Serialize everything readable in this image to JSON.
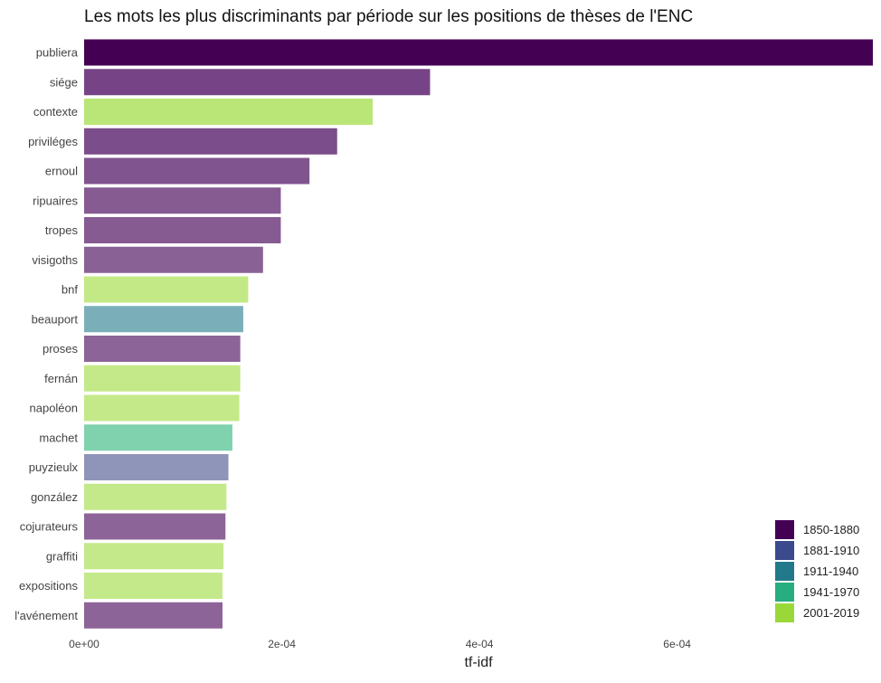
{
  "chart_data": {
    "type": "bar",
    "orientation": "horizontal",
    "title": "Les mots les plus discriminants par période sur les positions de thèses de l'ENC",
    "xlabel": "tf-idf",
    "ylabel": "",
    "xlim": [
      0,
      0.000798
    ],
    "x_ticks": [
      {
        "value": 0,
        "label": "0e+00"
      },
      {
        "value": 0.0002,
        "label": "2e-04"
      },
      {
        "value": 0.0004,
        "label": "4e-04"
      },
      {
        "value": 0.0006,
        "label": "6e-04"
      }
    ],
    "grid": false,
    "legend_position": "bottom-right",
    "legend": [
      {
        "label": "1850-1880",
        "color": "#440154"
      },
      {
        "label": "1881-1910",
        "color": "#3b4a8c"
      },
      {
        "label": "1911-1940",
        "color": "#22798a"
      },
      {
        "label": "1941-1970",
        "color": "#27ad80"
      },
      {
        "label": "2001-2019",
        "color": "#9ad83a"
      }
    ],
    "bars": [
      {
        "word": "publiera",
        "value": 0.000798,
        "color": "#440154"
      },
      {
        "word": "siége",
        "value": 0.00035,
        "color": "#764486"
      },
      {
        "word": "contexte",
        "value": 0.000292,
        "color": "#bae677"
      },
      {
        "word": "priviléges",
        "value": 0.000256,
        "color": "#7b4d8a"
      },
      {
        "word": "ernoul",
        "value": 0.000228,
        "color": "#80548e"
      },
      {
        "word": "ripuaires",
        "value": 0.000199,
        "color": "#855b92"
      },
      {
        "word": "tropes",
        "value": 0.000199,
        "color": "#855b92"
      },
      {
        "word": "visigoths",
        "value": 0.000181,
        "color": "#8a6195"
      },
      {
        "word": "bnf",
        "value": 0.000166,
        "color": "#c2e985"
      },
      {
        "word": "beauport",
        "value": 0.000161,
        "color": "#7aafb9"
      },
      {
        "word": "proses",
        "value": 0.000158,
        "color": "#8c6497"
      },
      {
        "word": "fernán",
        "value": 0.000158,
        "color": "#c3e988"
      },
      {
        "word": "napoléon",
        "value": 0.000157,
        "color": "#c3e988"
      },
      {
        "word": "machet",
        "value": 0.00015,
        "color": "#80d1ae"
      },
      {
        "word": "puyzieulx",
        "value": 0.000146,
        "color": "#8f95b8"
      },
      {
        "word": "gonzález",
        "value": 0.000144,
        "color": "#c4e98a"
      },
      {
        "word": "cojurateurs",
        "value": 0.000143,
        "color": "#8d6498"
      },
      {
        "word": "graffiti",
        "value": 0.000141,
        "color": "#c4e98a"
      },
      {
        "word": "expositions",
        "value": 0.00014,
        "color": "#c4e98a"
      },
      {
        "word": "l'avénement",
        "value": 0.00014,
        "color": "#8d6498"
      }
    ]
  }
}
